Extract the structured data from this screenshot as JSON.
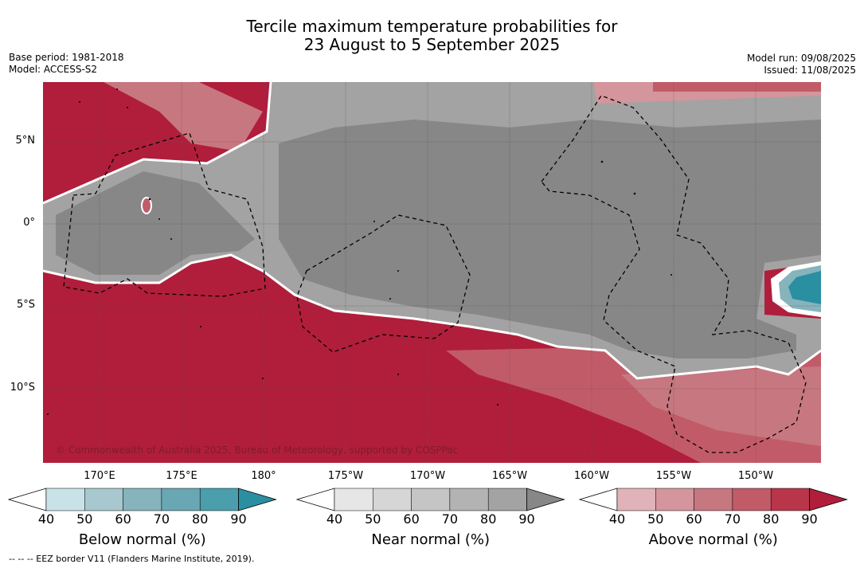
{
  "title_line1": "Tercile maximum temperature probabilities for",
  "title_line2": "23 August to 5 September 2025",
  "meta_left": {
    "base_period": "Base period: 1981-2018",
    "model": "Model: ACCESS-S2"
  },
  "meta_right": {
    "model_run": "Model run: 09/08/2025",
    "issued": "Issued: 11/08/2025"
  },
  "lat_labels": [
    "5°N",
    "0°",
    "5°S",
    "10°S"
  ],
  "lon_labels": [
    "170°E",
    "175°E",
    "180°",
    "175°W",
    "170°W",
    "165°W",
    "160°W",
    "155°W",
    "150°W"
  ],
  "copyright": "© Commonwealth of Australia 2025, Bureau of Meteorology, supported by COSPPac",
  "colorbars": [
    {
      "title": "Below normal (%)",
      "ticks": [
        "40",
        "50",
        "60",
        "70",
        "80",
        "90"
      ],
      "colors": [
        "#c9e2e8",
        "#a6c8ce",
        "#86b3bc",
        "#68a7b3",
        "#4b9eac",
        "#2a8fa0"
      ]
    },
    {
      "title": "Near normal (%)",
      "ticks": [
        "40",
        "50",
        "60",
        "70",
        "80",
        "90"
      ],
      "colors": [
        "#e6e6e6",
        "#d6d6d6",
        "#c5c5c5",
        "#b3b3b3",
        "#a3a3a3",
        "#878787"
      ]
    },
    {
      "title": "Above normal (%)",
      "ticks": [
        "40",
        "50",
        "60",
        "70",
        "80",
        "90"
      ],
      "colors": [
        "#e0b3b8",
        "#d4959c",
        "#c77780",
        "#c25b68",
        "#b8354a",
        "#b01e3c"
      ]
    }
  ],
  "footnote": "--  --  -- EEZ border V11 (Flanders Marine Institute, 2019)."
}
